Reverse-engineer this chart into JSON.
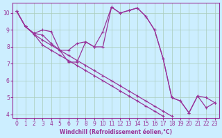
{
  "xlabel": "Windchill (Refroidissement éolien,°C)",
  "bg_color": "#cceeff",
  "grid_color": "#aaccbb",
  "line_color": "#993399",
  "xlim": [
    -0.5,
    23.5
  ],
  "ylim": [
    3.8,
    10.6
  ],
  "xticks": [
    0,
    1,
    2,
    3,
    4,
    5,
    6,
    7,
    8,
    9,
    10,
    11,
    12,
    13,
    14,
    15,
    16,
    17,
    18,
    19,
    20,
    21,
    22,
    23
  ],
  "yticks": [
    4,
    5,
    6,
    7,
    8,
    9,
    10
  ],
  "series": [
    [
      10.1,
      9.2,
      8.8,
      9.0,
      8.9,
      7.8,
      7.8,
      8.2,
      8.3,
      8.0,
      8.0,
      10.35,
      10.0,
      10.15,
      10.3,
      9.8,
      9.0,
      7.3,
      5.0,
      4.8,
      4.1,
      5.1,
      5.0,
      4.7
    ],
    [
      10.1,
      9.2,
      8.8,
      8.7,
      8.2,
      7.8,
      7.1,
      7.1,
      8.3,
      8.0,
      8.9,
      10.35,
      10.0,
      10.15,
      10.3,
      9.8,
      9.0,
      7.3,
      5.0,
      4.8,
      4.1,
      5.1,
      4.4,
      4.7
    ],
    [
      10.1,
      9.2,
      8.75,
      8.1,
      7.8,
      7.5,
      7.2,
      6.9,
      6.6,
      6.3,
      6.0,
      5.7,
      5.4,
      5.1,
      4.8,
      4.5,
      4.2,
      3.9,
      null,
      null,
      null,
      null,
      null,
      null
    ],
    [
      10.1,
      9.2,
      8.75,
      8.4,
      8.1,
      7.8,
      7.5,
      7.2,
      6.9,
      6.6,
      6.3,
      6.0,
      5.7,
      5.4,
      5.1,
      4.8,
      4.5,
      4.2,
      3.9,
      null,
      null,
      null,
      null,
      null
    ]
  ]
}
